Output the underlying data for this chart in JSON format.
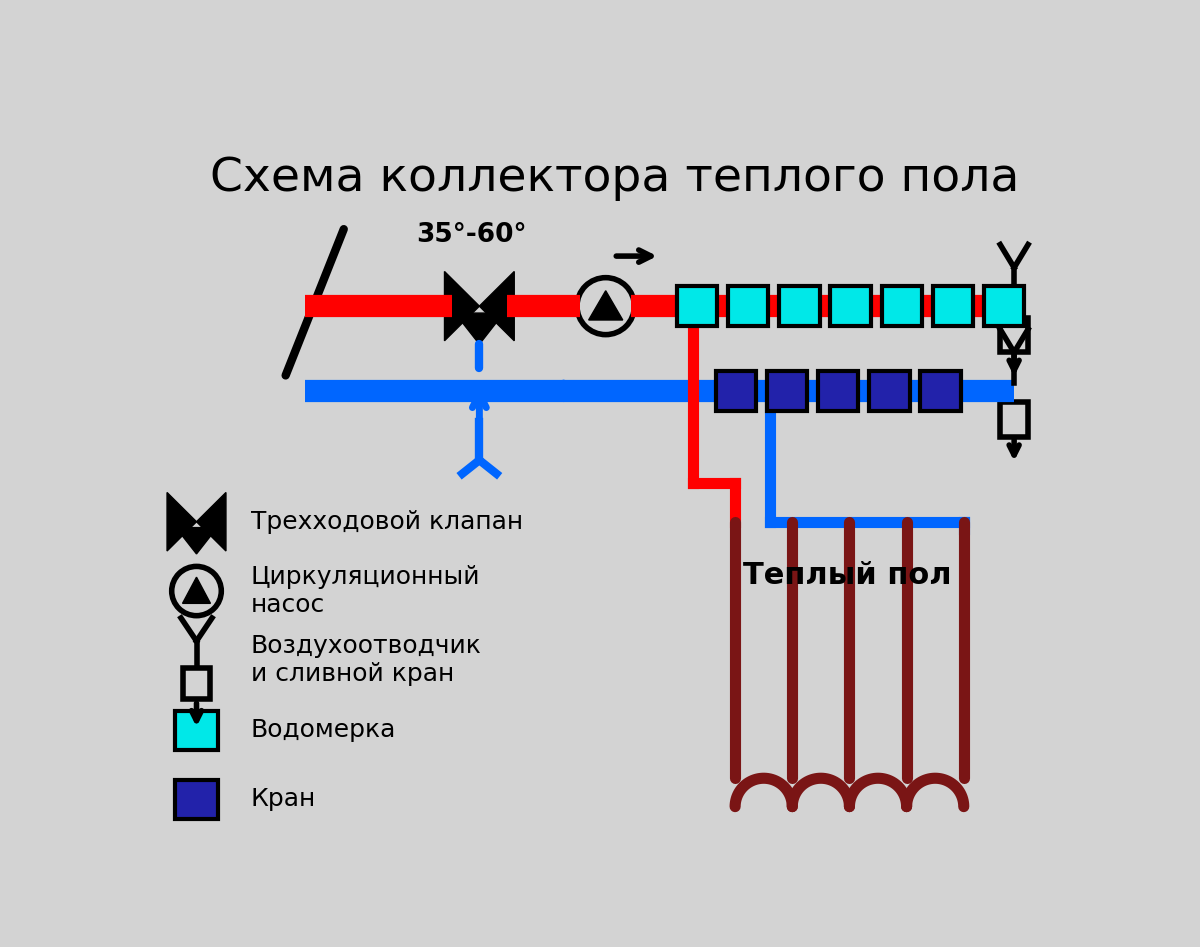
{
  "title": "Схема коллектора теплого пола",
  "bg_color": "#d3d3d3",
  "red_color": "#ff0000",
  "blue_color": "#0066ff",
  "dark_red_color": "#7a1515",
  "cyan_color": "#00e8e8",
  "dark_blue_color": "#2222aa",
  "black_color": "#000000",
  "white_color": "#ffffff",
  "temp_label": "35°-60°",
  "warm_floor_label": "Теплый пол",
  "legend_valve": "Трехходовой клапан",
  "legend_pump": "Циркуляционный\nнасос",
  "legend_vent": "Воздухоотводчик\nи сливной кран",
  "legend_flow": "Водомерка",
  "legend_valve2": "Кран"
}
